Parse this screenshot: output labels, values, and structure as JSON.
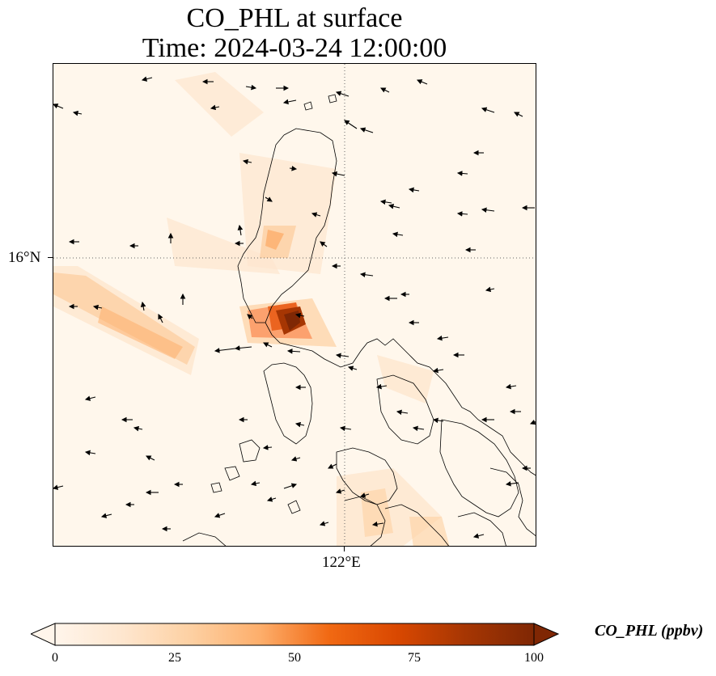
{
  "title": {
    "line1": "CO_PHL at surface",
    "line2": "Time: 2024-03-24 12:00:00"
  },
  "axes": {
    "lat_label": "16°N",
    "lon_label": "122°E"
  },
  "colorbar": {
    "label": "CO_PHL (ppbv)",
    "ticks": [
      "0",
      "25",
      "50",
      "75",
      "100"
    ],
    "min": 0,
    "max": 100,
    "colormap": "Oranges",
    "stops": [
      "#fff5eb",
      "#fee6ce",
      "#fdd0a2",
      "#fdae6b",
      "#f16913",
      "#d94801",
      "#a63603",
      "#7f2704"
    ],
    "extend": "both"
  },
  "map": {
    "background_color": "#fff7ec",
    "gridline_style": "dotted",
    "features": [
      "coastline",
      "wind-vectors",
      "concentration-field"
    ]
  }
}
